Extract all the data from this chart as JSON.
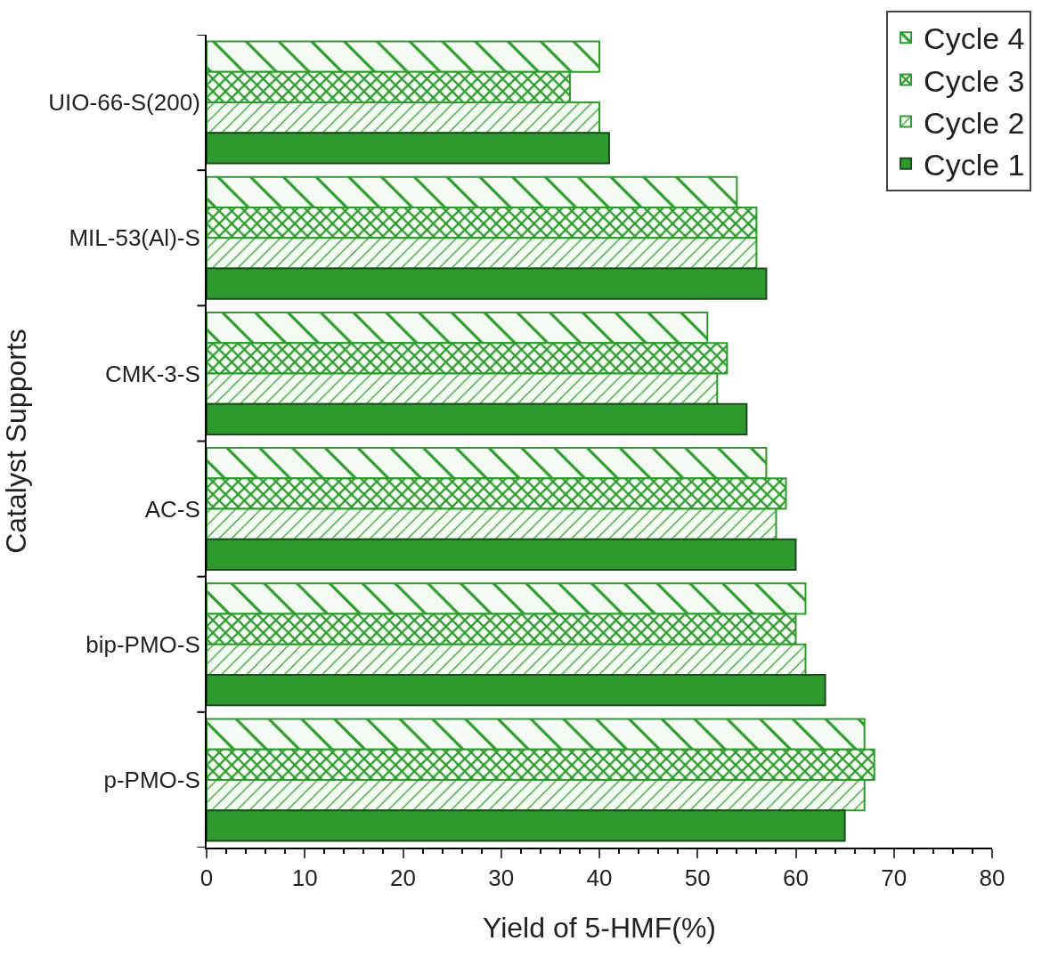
{
  "chart_data": {
    "type": "bar",
    "orientation": "horizontal",
    "xlabel": "Yield of 5-HMF(%)",
    "ylabel": "Catalyst Supports",
    "categories": [
      "UIO-66-S(200)",
      "MIL-53(Al)-S",
      "CMK-3-S",
      "AC-S",
      "bip-PMO-S",
      "p-PMO-S"
    ],
    "series": [
      {
        "name": "Cycle 4",
        "color": "#2e9a2e",
        "values": [
          40,
          54,
          51,
          57,
          61,
          67
        ]
      },
      {
        "name": "Cycle 3",
        "color": "#2e9a2e",
        "values": [
          37,
          56,
          53,
          59,
          60,
          68
        ]
      },
      {
        "name": "Cycle 2",
        "color": "#2e9a2e",
        "values": [
          40,
          56,
          52,
          58,
          61,
          67
        ]
      },
      {
        "name": "Cycle 1",
        "color": "#2e9a2e",
        "values": [
          41,
          57,
          55,
          60,
          63,
          65
        ]
      }
    ],
    "xlim": [
      0,
      80
    ],
    "xticks": [
      0,
      10,
      20,
      30,
      40,
      50,
      60,
      70,
      80
    ],
    "grid": false,
    "legend": "top right"
  }
}
